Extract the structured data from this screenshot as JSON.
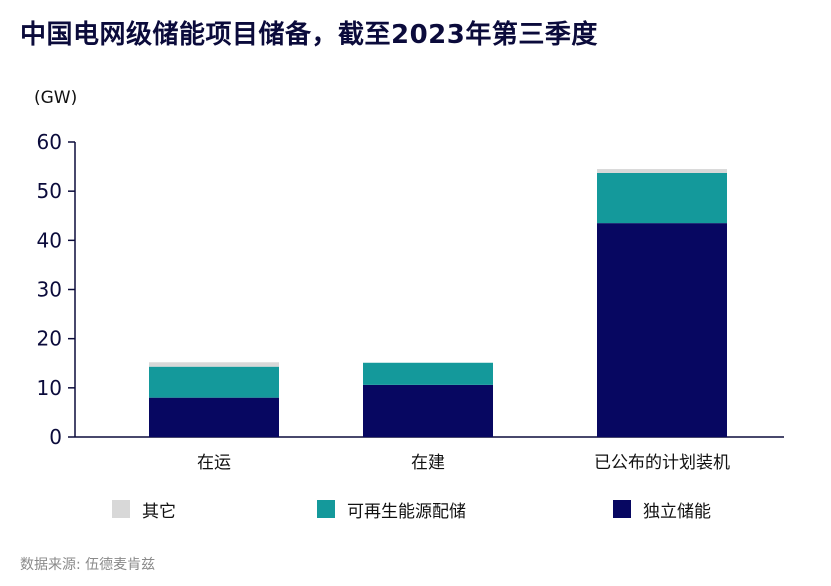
{
  "title": "中国电网级储能项目储备，截至2023年第三季度",
  "source": "数据来源: 伍德麦肯兹",
  "chart_data": {
    "type": "bar",
    "stacked": true,
    "unit_label": "(GW)",
    "categories": [
      "在运",
      "在建",
      "已公布的计划装机"
    ],
    "series": [
      {
        "name": "独立储能",
        "color": "#070761",
        "values": [
          8,
          10.6,
          43.5
        ]
      },
      {
        "name": "可再生能源配储",
        "color": "#14999b",
        "values": [
          6.3,
          4.5,
          10.2
        ]
      },
      {
        "name": "其它",
        "color": "#d8d8d8",
        "values": [
          0.9,
          0,
          0.8
        ]
      }
    ],
    "yticks": [
      0,
      10,
      20,
      30,
      40,
      50,
      60
    ],
    "ylim": [
      0,
      60
    ],
    "legend_order": [
      2,
      1,
      0
    ]
  }
}
